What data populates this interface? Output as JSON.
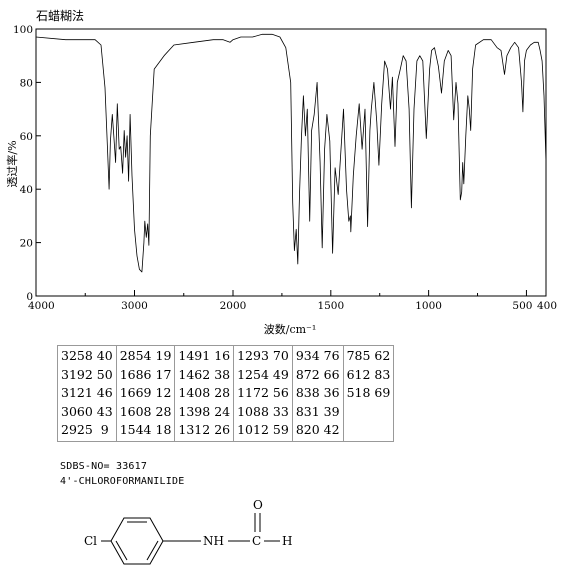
{
  "chart_data": {
    "type": "line",
    "title": "石蜡糊法",
    "xlabel": "波数/cm⁻¹",
    "ylabel": "透过率/%",
    "x_reversed": true,
    "xlim": [
      4000,
      400
    ],
    "ylim": [
      0,
      100
    ],
    "x_ticks": [
      4000,
      3000,
      2000,
      1500,
      1000,
      500,
      400
    ],
    "x_tick_labels": [
      "4000",
      "3000",
      "2000",
      "1500",
      "1000",
      "500",
      "400"
    ],
    "y_ticks": [
      0,
      20,
      40,
      60,
      80,
      100
    ],
    "y_tick_labels": [
      "0",
      "20",
      "40",
      "60",
      "80",
      "100"
    ],
    "grid": false,
    "series": [
      {
        "x": [
          4000,
          3700,
          3400,
          3340,
          3300,
          3275,
          3258,
          3245,
          3225,
          3210,
          3192,
          3175,
          3155,
          3140,
          3121,
          3105,
          3090,
          3075,
          3060,
          3045,
          3025,
          3000,
          2975,
          2950,
          2925,
          2905,
          2895,
          2880,
          2866,
          2854,
          2840,
          2800,
          2700,
          2600,
          2400,
          2200,
          2100,
          2030,
          2000,
          1960,
          1900,
          1850,
          1800,
          1760,
          1730,
          1705,
          1695,
          1686,
          1677,
          1669,
          1660,
          1650,
          1640,
          1630,
          1620,
          1608,
          1598,
          1585,
          1570,
          1555,
          1544,
          1532,
          1520,
          1505,
          1491,
          1478,
          1462,
          1448,
          1435,
          1420,
          1408,
          1400,
          1398,
          1385,
          1370,
          1355,
          1340,
          1325,
          1312,
          1300,
          1293,
          1280,
          1265,
          1254,
          1240,
          1225,
          1210,
          1195,
          1185,
          1172,
          1160,
          1145,
          1130,
          1115,
          1100,
          1088,
          1075,
          1060,
          1045,
          1030,
          1012,
          995,
          985,
          970,
          950,
          934,
          920,
          900,
          885,
          872,
          860,
          850,
          838,
          831,
          826,
          820,
          810,
          800,
          792,
          785,
          775,
          760,
          720,
          680,
          650,
          630,
          612,
          600,
          580,
          560,
          540,
          525,
          518,
          510,
          500,
          480,
          460,
          440,
          430,
          420,
          410,
          400
        ],
        "y": [
          97,
          96,
          96,
          94,
          78,
          56,
          40,
          58,
          68,
          60,
          50,
          72,
          55,
          56,
          46,
          62,
          52,
          60,
          43,
          68,
          45,
          25,
          15,
          10,
          9,
          20,
          28,
          22,
          27,
          19,
          60,
          85,
          90,
          94,
          95,
          96,
          96,
          95,
          96,
          97,
          97,
          98,
          98,
          97,
          93,
          80,
          35,
          17,
          25,
          12,
          38,
          60,
          75,
          60,
          70,
          28,
          62,
          68,
          80,
          50,
          18,
          55,
          68,
          58,
          16,
          48,
          38,
          55,
          70,
          40,
          28,
          30,
          24,
          45,
          60,
          72,
          55,
          70,
          26,
          62,
          70,
          80,
          65,
          49,
          72,
          88,
          85,
          70,
          82,
          56,
          80,
          85,
          90,
          88,
          70,
          33,
          70,
          88,
          90,
          88,
          59,
          85,
          92,
          93,
          86,
          76,
          88,
          92,
          90,
          66,
          80,
          72,
          36,
          39,
          50,
          42,
          60,
          75,
          70,
          62,
          85,
          94,
          96,
          96,
          93,
          92,
          83,
          90,
          93,
          95,
          93,
          80,
          69,
          88,
          92,
          94,
          95,
          95,
          92,
          88,
          75,
          50
        ]
      }
    ]
  },
  "peak_table": [
    [
      "3258 40",
      "3192 50",
      "3121 46",
      "3060 43",
      "2925  9"
    ],
    [
      "2854 19",
      "1686 17",
      "1669 12",
      "1608 28",
      "1544 18"
    ],
    [
      "1491 16",
      "1462 38",
      "1408 28",
      "1398 24",
      "1312 26"
    ],
    [
      "1293 70",
      "1254 49",
      "1172 56",
      "1088 33",
      "1012 59"
    ],
    [
      "934 76",
      "872 66",
      "838 36",
      "831 39",
      "820 42"
    ],
    [
      "785 62",
      "612 83",
      "518 69"
    ]
  ],
  "sdbs_line": "SDBS-NO=  33617",
  "compound_name": "4'-CHLOROFORMANILIDE",
  "structure_labels": {
    "cl": "Cl",
    "nh": "NH",
    "c": "C",
    "h": "H",
    "o": "O"
  }
}
